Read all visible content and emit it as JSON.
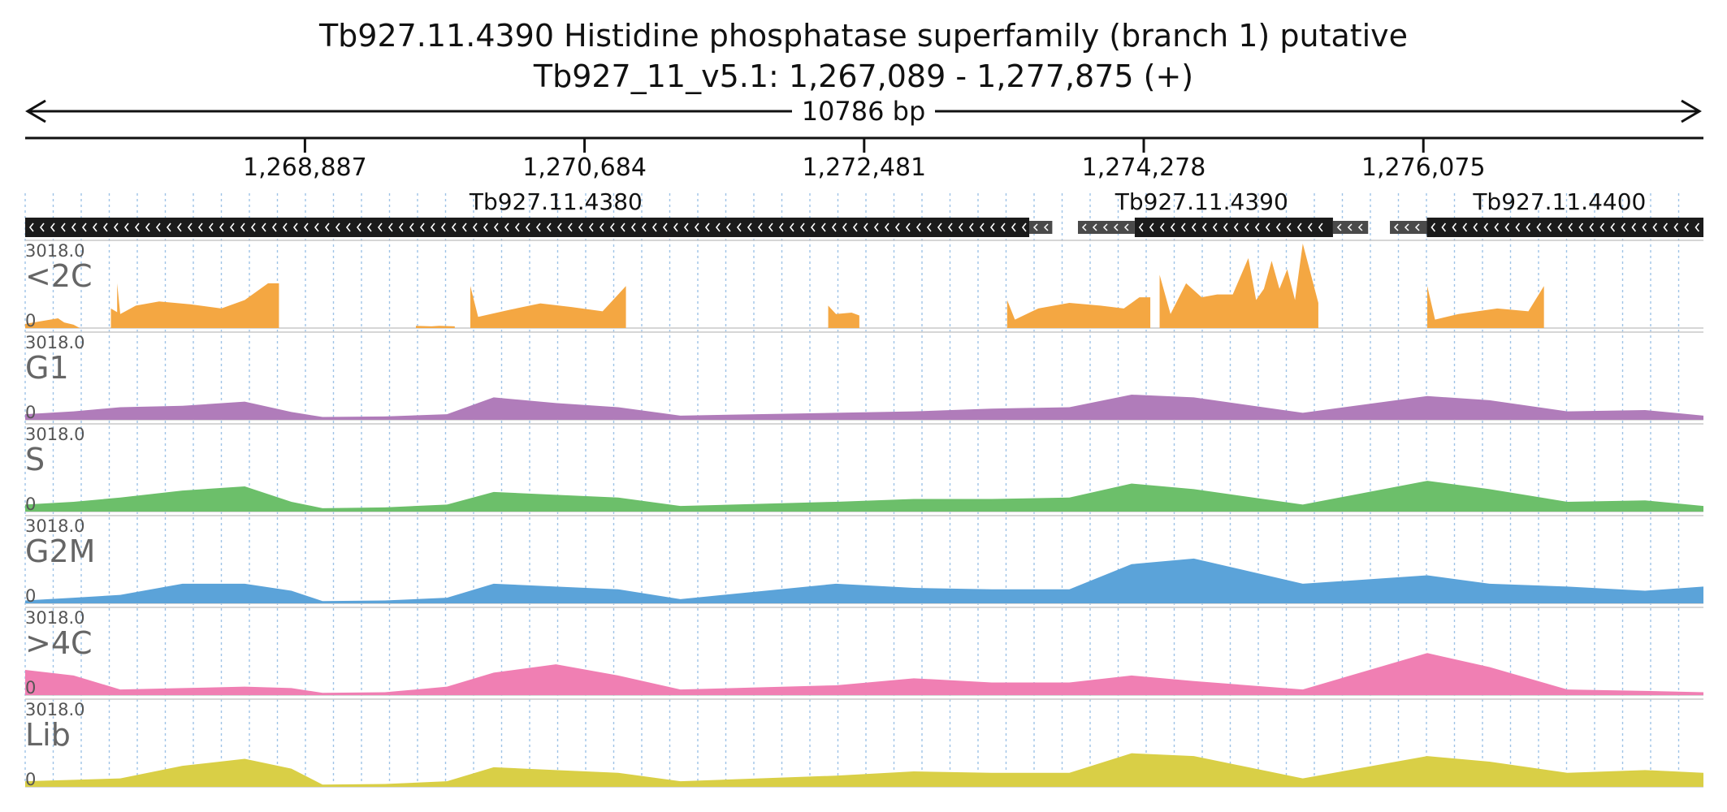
{
  "title": {
    "line1": "Tb927.11.4390  Histidine phosphatase superfamily (branch 1)  putative",
    "line2": "Tb927_11_v5.1: 1,267,089 - 1,277,875 (+)"
  },
  "region": {
    "start": 1267089,
    "end": 1277875,
    "span_label": "10786 bp"
  },
  "ticks": [
    {
      "pos": 1268887,
      "label": "1,268,887"
    },
    {
      "pos": 1270684,
      "label": "1,270,684"
    },
    {
      "pos": 1272481,
      "label": "1,272,481"
    },
    {
      "pos": 1274278,
      "label": "1,274,278"
    },
    {
      "pos": 1276075,
      "label": "1,276,075"
    }
  ],
  "genes": [
    {
      "name": "Tb927.11.4380",
      "strand": "-",
      "start": 1267089,
      "end": 1273542,
      "label_pos": 1270500,
      "utrs": [
        [
          1273542,
          1273690
        ]
      ]
    },
    {
      "name": "Tb927.11.4390",
      "strand": "-",
      "start": 1274220,
      "end": 1275494,
      "label_pos": 1274650,
      "utrs": [
        [
          1273855,
          1274220
        ],
        [
          1275494,
          1275720
        ]
      ]
    },
    {
      "name": "Tb927.11.4400",
      "strand": "-",
      "start": 1276097,
      "end": 1277875,
      "label_pos": 1276950,
      "utrs": [
        [
          1275860,
          1276097
        ]
      ]
    }
  ],
  "tracks": [
    {
      "name": "<2C",
      "max": "3018.0",
      "min": "0",
      "color": "#f4a742"
    },
    {
      "name": "G1",
      "max": "3018.0",
      "min": "0",
      "color": "#b07cba"
    },
    {
      "name": "S",
      "max": "3018.0",
      "min": "0",
      "color": "#6cbf6a"
    },
    {
      "name": "G2M",
      "max": "3018.0",
      "min": "0",
      "color": "#5ba3d9"
    },
    {
      "name": ">4C",
      "max": "3018.0",
      "min": "0",
      "color": "#f07fb3"
    },
    {
      "name": "Lib",
      "max": "3018.0",
      "min": "0",
      "color": "#d9cf46"
    }
  ],
  "chart_data": {
    "type": "area",
    "x_range": [
      1267089,
      1277875
    ],
    "ylim": [
      0,
      3018.0
    ],
    "series": [
      {
        "name": "<2C",
        "segments": [
          {
            "x": [
              1267089,
              1267300,
              1267340,
              1267400,
              1267440
            ],
            "y": [
              150,
              350,
              200,
              120,
              0
            ]
          },
          {
            "x": [
              1267640,
              1267700
            ],
            "y": [
              700,
              500
            ]
          },
          {
            "x": [
              1267680,
              1267700,
              1267800,
              1267950,
              1268150,
              1268350,
              1268500,
              1268650,
              1268720
            ],
            "y": [
              1600,
              500,
              800,
              950,
              850,
              700,
              1000,
              1600,
              1600
            ]
          },
          {
            "x": [
              1269600,
              1269700,
              1269750,
              1269850
            ],
            "y": [
              80,
              60,
              80,
              60
            ]
          },
          {
            "x": [
              1269950,
              1270000,
              1270200,
              1270400,
              1270600,
              1270800,
              1270950
            ],
            "y": [
              1500,
              400,
              650,
              880,
              750,
              600,
              1500
            ]
          },
          {
            "x": [
              1272250,
              1272300,
              1272400,
              1272450
            ],
            "y": [
              800,
              500,
              550,
              450
            ]
          },
          {
            "x": [
              1273400,
              1273450,
              1273600,
              1273800,
              1274000,
              1274150,
              1274250,
              1274320
            ],
            "y": [
              1000,
              300,
              700,
              900,
              800,
              700,
              1100,
              1100
            ]
          },
          {
            "x": [
              1274380,
              1274450,
              1274550,
              1274650,
              1274750,
              1274850,
              1274950,
              1275000,
              1275050,
              1275100,
              1275150,
              1275200,
              1275250,
              1275300,
              1275400
            ],
            "y": [
              1900,
              500,
              1600,
              1100,
              1200,
              1200,
              2500,
              1000,
              1400,
              2400,
              1400,
              2100,
              1000,
              3018,
              900
            ]
          },
          {
            "x": [
              1276100,
              1276150,
              1276300,
              1276550,
              1276750,
              1276850
            ],
            "y": [
              1500,
              300,
              500,
              700,
              600,
              1500
            ]
          }
        ]
      },
      {
        "name": "G1",
        "note_values": [
          {
            "x": [
              1267089,
              1267400,
              1267700,
              1268100,
              1268500,
              1268800,
              1269000,
              1269400,
              1269800,
              1270100,
              1270500,
              1270900,
              1271300,
              1272300,
              1272800,
              1273300,
              1273800,
              1274200,
              1274600,
              1275300,
              1276100,
              1276500,
              1277000,
              1277500,
              1277875
            ],
            "y": [
              200,
              300,
              450,
              500,
              650,
              280,
              100,
              120,
              200,
              800,
              600,
              450,
              150,
              250,
              300,
              400,
              450,
              900,
              800,
              250,
              850,
              700,
              300,
              350,
              150
            ]
          }
        ]
      },
      {
        "name": "S",
        "note_values": [
          {
            "x": [
              1267089,
              1267400,
              1267700,
              1268100,
              1268500,
              1268800,
              1269000,
              1269400,
              1269800,
              1270100,
              1270500,
              1270900,
              1271300,
              1272300,
              1272800,
              1273300,
              1273800,
              1274200,
              1274600,
              1275300,
              1276100,
              1276500,
              1277000,
              1277500,
              1277875
            ],
            "y": [
              250,
              350,
              500,
              750,
              900,
              350,
              120,
              150,
              250,
              700,
              600,
              500,
              200,
              350,
              450,
              450,
              500,
              1000,
              800,
              250,
              1100,
              800,
              350,
              400,
              200
            ]
          }
        ]
      },
      {
        "name": "G2M",
        "note_values": [
          {
            "x": [
              1267089,
              1267400,
              1267700,
              1268100,
              1268500,
              1268800,
              1269000,
              1269400,
              1269800,
              1270100,
              1270500,
              1270900,
              1271300,
              1272300,
              1272800,
              1273300,
              1273800,
              1274200,
              1274600,
              1275300,
              1276100,
              1276500,
              1277000,
              1277500,
              1277875
            ],
            "y": [
              100,
              200,
              300,
              700,
              700,
              450,
              80,
              100,
              200,
              700,
              600,
              500,
              150,
              700,
              550,
              500,
              500,
              1400,
              1600,
              700,
              1000,
              700,
              600,
              450,
              600
            ]
          }
        ]
      },
      {
        "name": ">4C",
        "note_values": [
          {
            "x": [
              1267089,
              1267400,
              1267700,
              1268100,
              1268500,
              1268800,
              1269000,
              1269400,
              1269800,
              1270100,
              1270500,
              1270900,
              1271300,
              1272300,
              1272800,
              1273300,
              1273800,
              1274200,
              1274600,
              1275300,
              1276100,
              1276500,
              1277000,
              1277500,
              1277875
            ],
            "y": [
              900,
              700,
              200,
              250,
              300,
              250,
              80,
              100,
              300,
              800,
              1100,
              700,
              200,
              350,
              600,
              450,
              450,
              700,
              500,
              200,
              1500,
              1000,
              200,
              150,
              100
            ]
          }
        ]
      },
      {
        "name": "Lib",
        "note_values": [
          {
            "x": [
              1267089,
              1267400,
              1267700,
              1268100,
              1268500,
              1268800,
              1269000,
              1269400,
              1269800,
              1270100,
              1270500,
              1270900,
              1271300,
              1272300,
              1272800,
              1273300,
              1273800,
              1274200,
              1274600,
              1275300,
              1276100,
              1276500,
              1277000,
              1277500,
              1277875
            ],
            "y": [
              200,
              250,
              300,
              750,
              1000,
              650,
              80,
              100,
              200,
              700,
              600,
              500,
              200,
              400,
              550,
              500,
              500,
              1200,
              1100,
              300,
              1100,
              900,
              500,
              600,
              500
            ]
          }
        ]
      }
    ]
  }
}
